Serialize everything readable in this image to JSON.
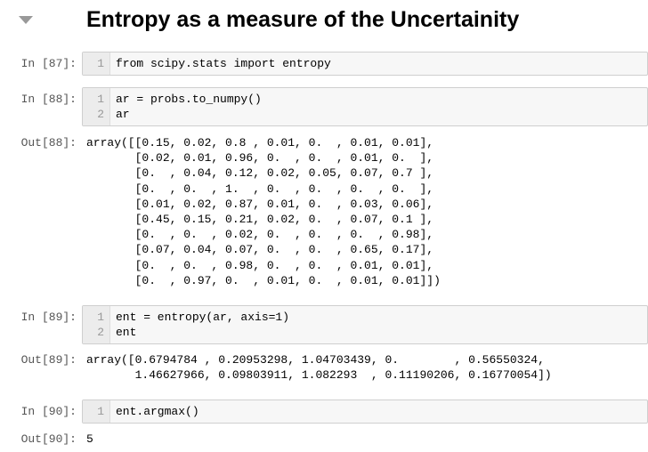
{
  "header": {
    "title": "Entropy as a measure of the Uncertainity"
  },
  "cells": [
    {
      "prompt": "In [87]:",
      "lines": [
        {
          "num": "1",
          "code": "from scipy.stats import entropy"
        }
      ]
    },
    {
      "prompt": "In [88]:",
      "lines": [
        {
          "num": "1",
          "code": "ar = probs.to_numpy()"
        },
        {
          "num": "2",
          "code": "ar"
        }
      ],
      "output": {
        "prompt": "Out[88]:",
        "lines": [
          "array([[0.15, 0.02, 0.8 , 0.01, 0.  , 0.01, 0.01],",
          "       [0.02, 0.01, 0.96, 0.  , 0.  , 0.01, 0.  ],",
          "       [0.  , 0.04, 0.12, 0.02, 0.05, 0.07, 0.7 ],",
          "       [0.  , 0.  , 1.  , 0.  , 0.  , 0.  , 0.  ],",
          "       [0.01, 0.02, 0.87, 0.01, 0.  , 0.03, 0.06],",
          "       [0.45, 0.15, 0.21, 0.02, 0.  , 0.07, 0.1 ],",
          "       [0.  , 0.  , 0.02, 0.  , 0.  , 0.  , 0.98],",
          "       [0.07, 0.04, 0.07, 0.  , 0.  , 0.65, 0.17],",
          "       [0.  , 0.  , 0.98, 0.  , 0.  , 0.01, 0.01],",
          "       [0.  , 0.97, 0.  , 0.01, 0.  , 0.01, 0.01]])"
        ]
      }
    },
    {
      "prompt": "In [89]:",
      "lines": [
        {
          "num": "1",
          "code": "ent = entropy(ar, axis=1)"
        },
        {
          "num": "2",
          "code": "ent"
        }
      ],
      "output": {
        "prompt": "Out[89]:",
        "lines": [
          "array([0.6794784 , 0.20953298, 1.04703439, 0.        , 0.56550324,",
          "       1.46627966, 0.09803911, 1.082293  , 0.11190206, 0.16770054])"
        ]
      }
    },
    {
      "prompt": "In [90]:",
      "lines": [
        {
          "num": "1",
          "code": "ent.argmax()"
        }
      ],
      "output": {
        "prompt": "Out[90]:",
        "lines": [
          "5"
        ]
      }
    }
  ]
}
